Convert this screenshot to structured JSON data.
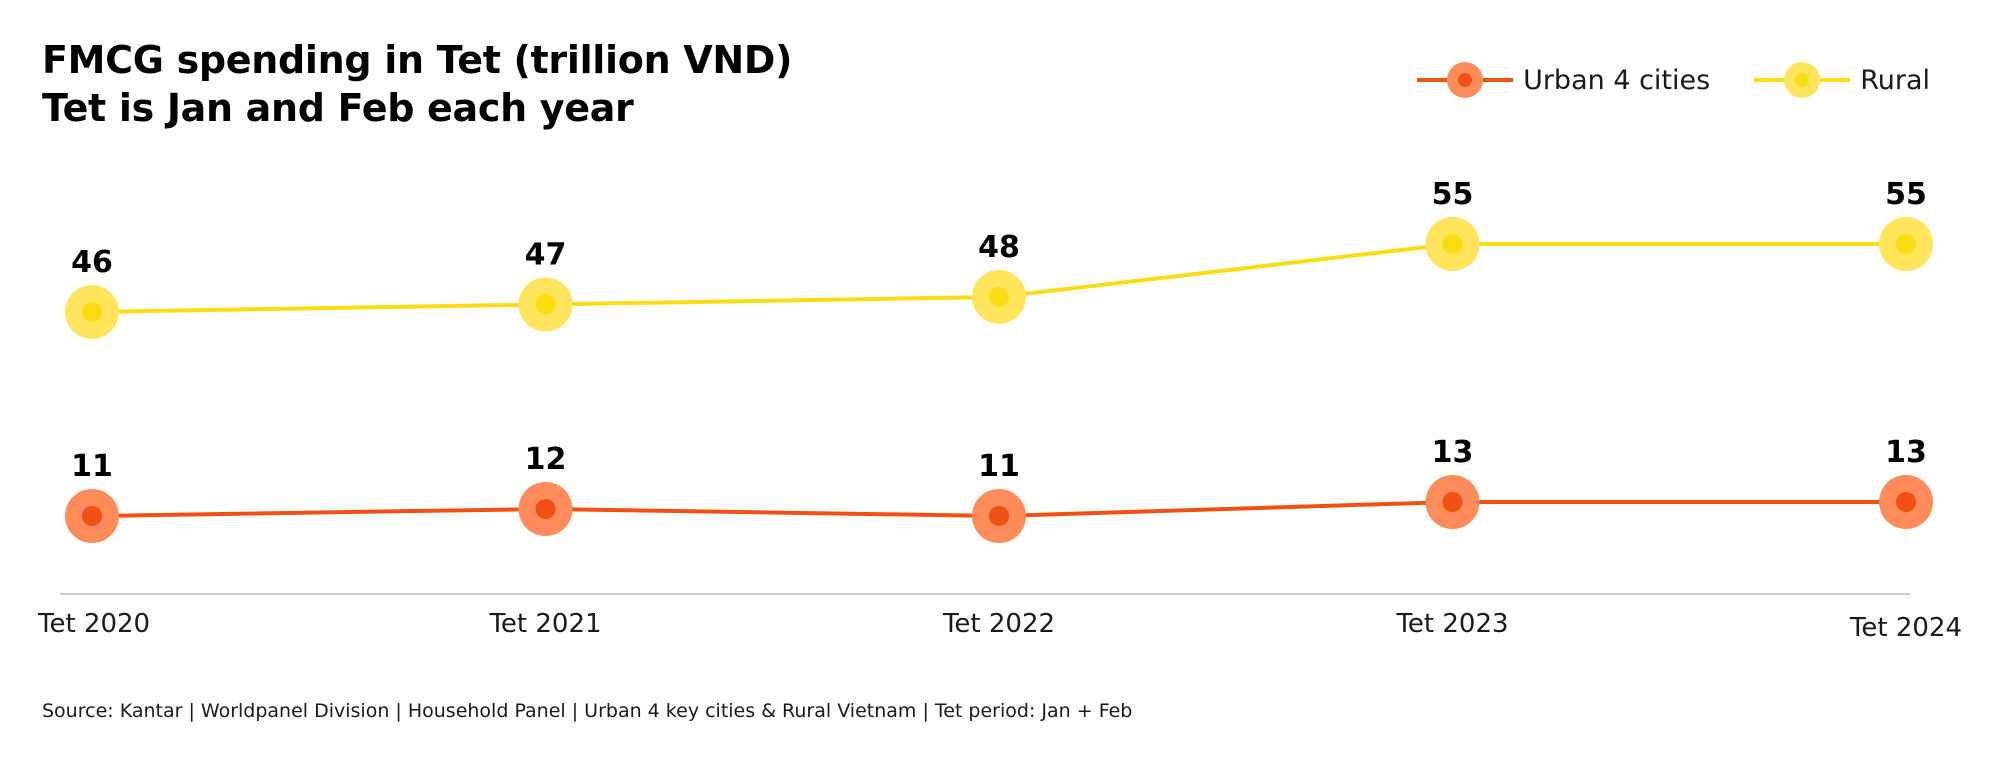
{
  "chart_data": {
    "type": "line",
    "title": "FMCG spending in Tet (trillion VND)",
    "subtitle": "Tet is Jan and Feb each year",
    "xlabel": "",
    "ylabel": "",
    "categories": [
      "Tet 2020",
      "Tet 2021",
      "Tet 2022",
      "Tet 2023",
      "Tet 2024"
    ],
    "series": [
      {
        "name": "Urban 4 cities",
        "values": [
          11,
          12,
          11,
          13,
          13
        ],
        "color": "#F05014",
        "marker_halo": "#FF8C5A"
      },
      {
        "name": "Rural",
        "values": [
          46,
          47,
          48,
          55,
          55
        ],
        "color": "#FADC14",
        "marker_halo": "#FFE45C"
      }
    ],
    "legend_position": "top-right",
    "grid": false,
    "source": "Source: Kantar | Worldpanel Division | Household Panel | Urban 4 key cities & Rural Vietnam | Tet period: Jan + Feb",
    "axis_color": "#CCCCCC"
  }
}
